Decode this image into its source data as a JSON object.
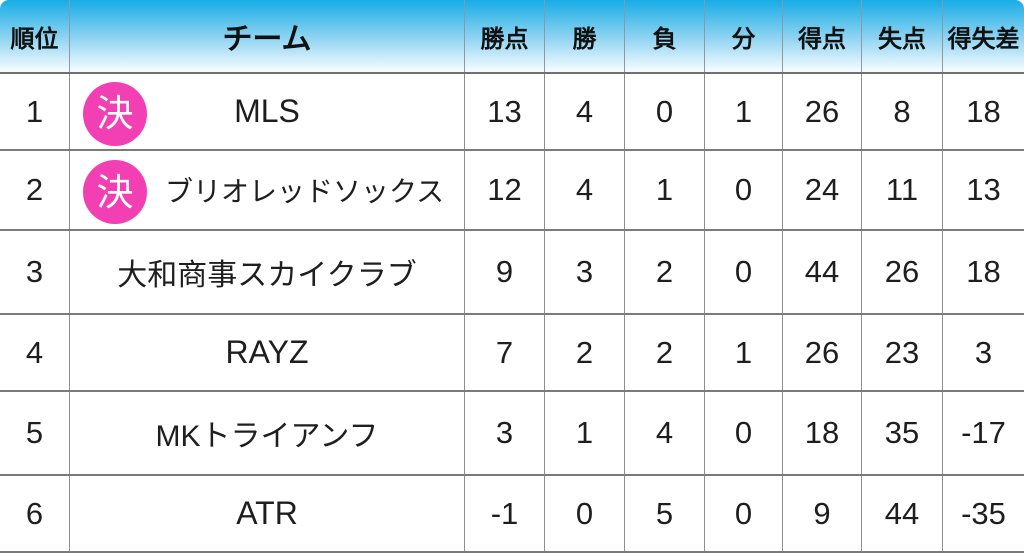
{
  "colors": {
    "header_gradient_top": "#17ace5",
    "header_gradient_mid": "#8ed3f1",
    "header_gradient_bottom": "#f2fbff",
    "badge_pink": "#f23fb3",
    "border_gray": "#8f8f8f",
    "text": "#1e1e1e"
  },
  "badge": {
    "label": "決"
  },
  "chart_data": {
    "type": "table",
    "title": "",
    "columns": [
      "順位",
      "チーム",
      "勝点",
      "勝",
      "負",
      "分",
      "得点",
      "失点",
      "得失差"
    ],
    "rows": [
      {
        "rank": 1,
        "badge": "決",
        "team": "MLS",
        "points": 13,
        "wins": 4,
        "losses": 0,
        "draws": 1,
        "goals_for": 26,
        "goals_against": 8,
        "goal_diff": 18
      },
      {
        "rank": 2,
        "badge": "決",
        "team": "ブリオレッドソックス",
        "points": 12,
        "wins": 4,
        "losses": 1,
        "draws": 0,
        "goals_for": 24,
        "goals_against": 11,
        "goal_diff": 13
      },
      {
        "rank": 3,
        "badge": null,
        "team": "大和商事スカイクラブ",
        "points": 9,
        "wins": 3,
        "losses": 2,
        "draws": 0,
        "goals_for": 44,
        "goals_against": 26,
        "goal_diff": 18
      },
      {
        "rank": 4,
        "badge": null,
        "team": "RAYZ",
        "points": 7,
        "wins": 2,
        "losses": 2,
        "draws": 1,
        "goals_for": 26,
        "goals_against": 23,
        "goal_diff": 3
      },
      {
        "rank": 5,
        "badge": null,
        "team": "MKトライアンフ",
        "points": 3,
        "wins": 1,
        "losses": 4,
        "draws": 0,
        "goals_for": 18,
        "goals_against": 35,
        "goal_diff": -17
      },
      {
        "rank": 6,
        "badge": null,
        "team": "ATR",
        "points": -1,
        "wins": 0,
        "losses": 5,
        "draws": 0,
        "goals_for": 9,
        "goals_against": 44,
        "goal_diff": -35
      }
    ]
  }
}
